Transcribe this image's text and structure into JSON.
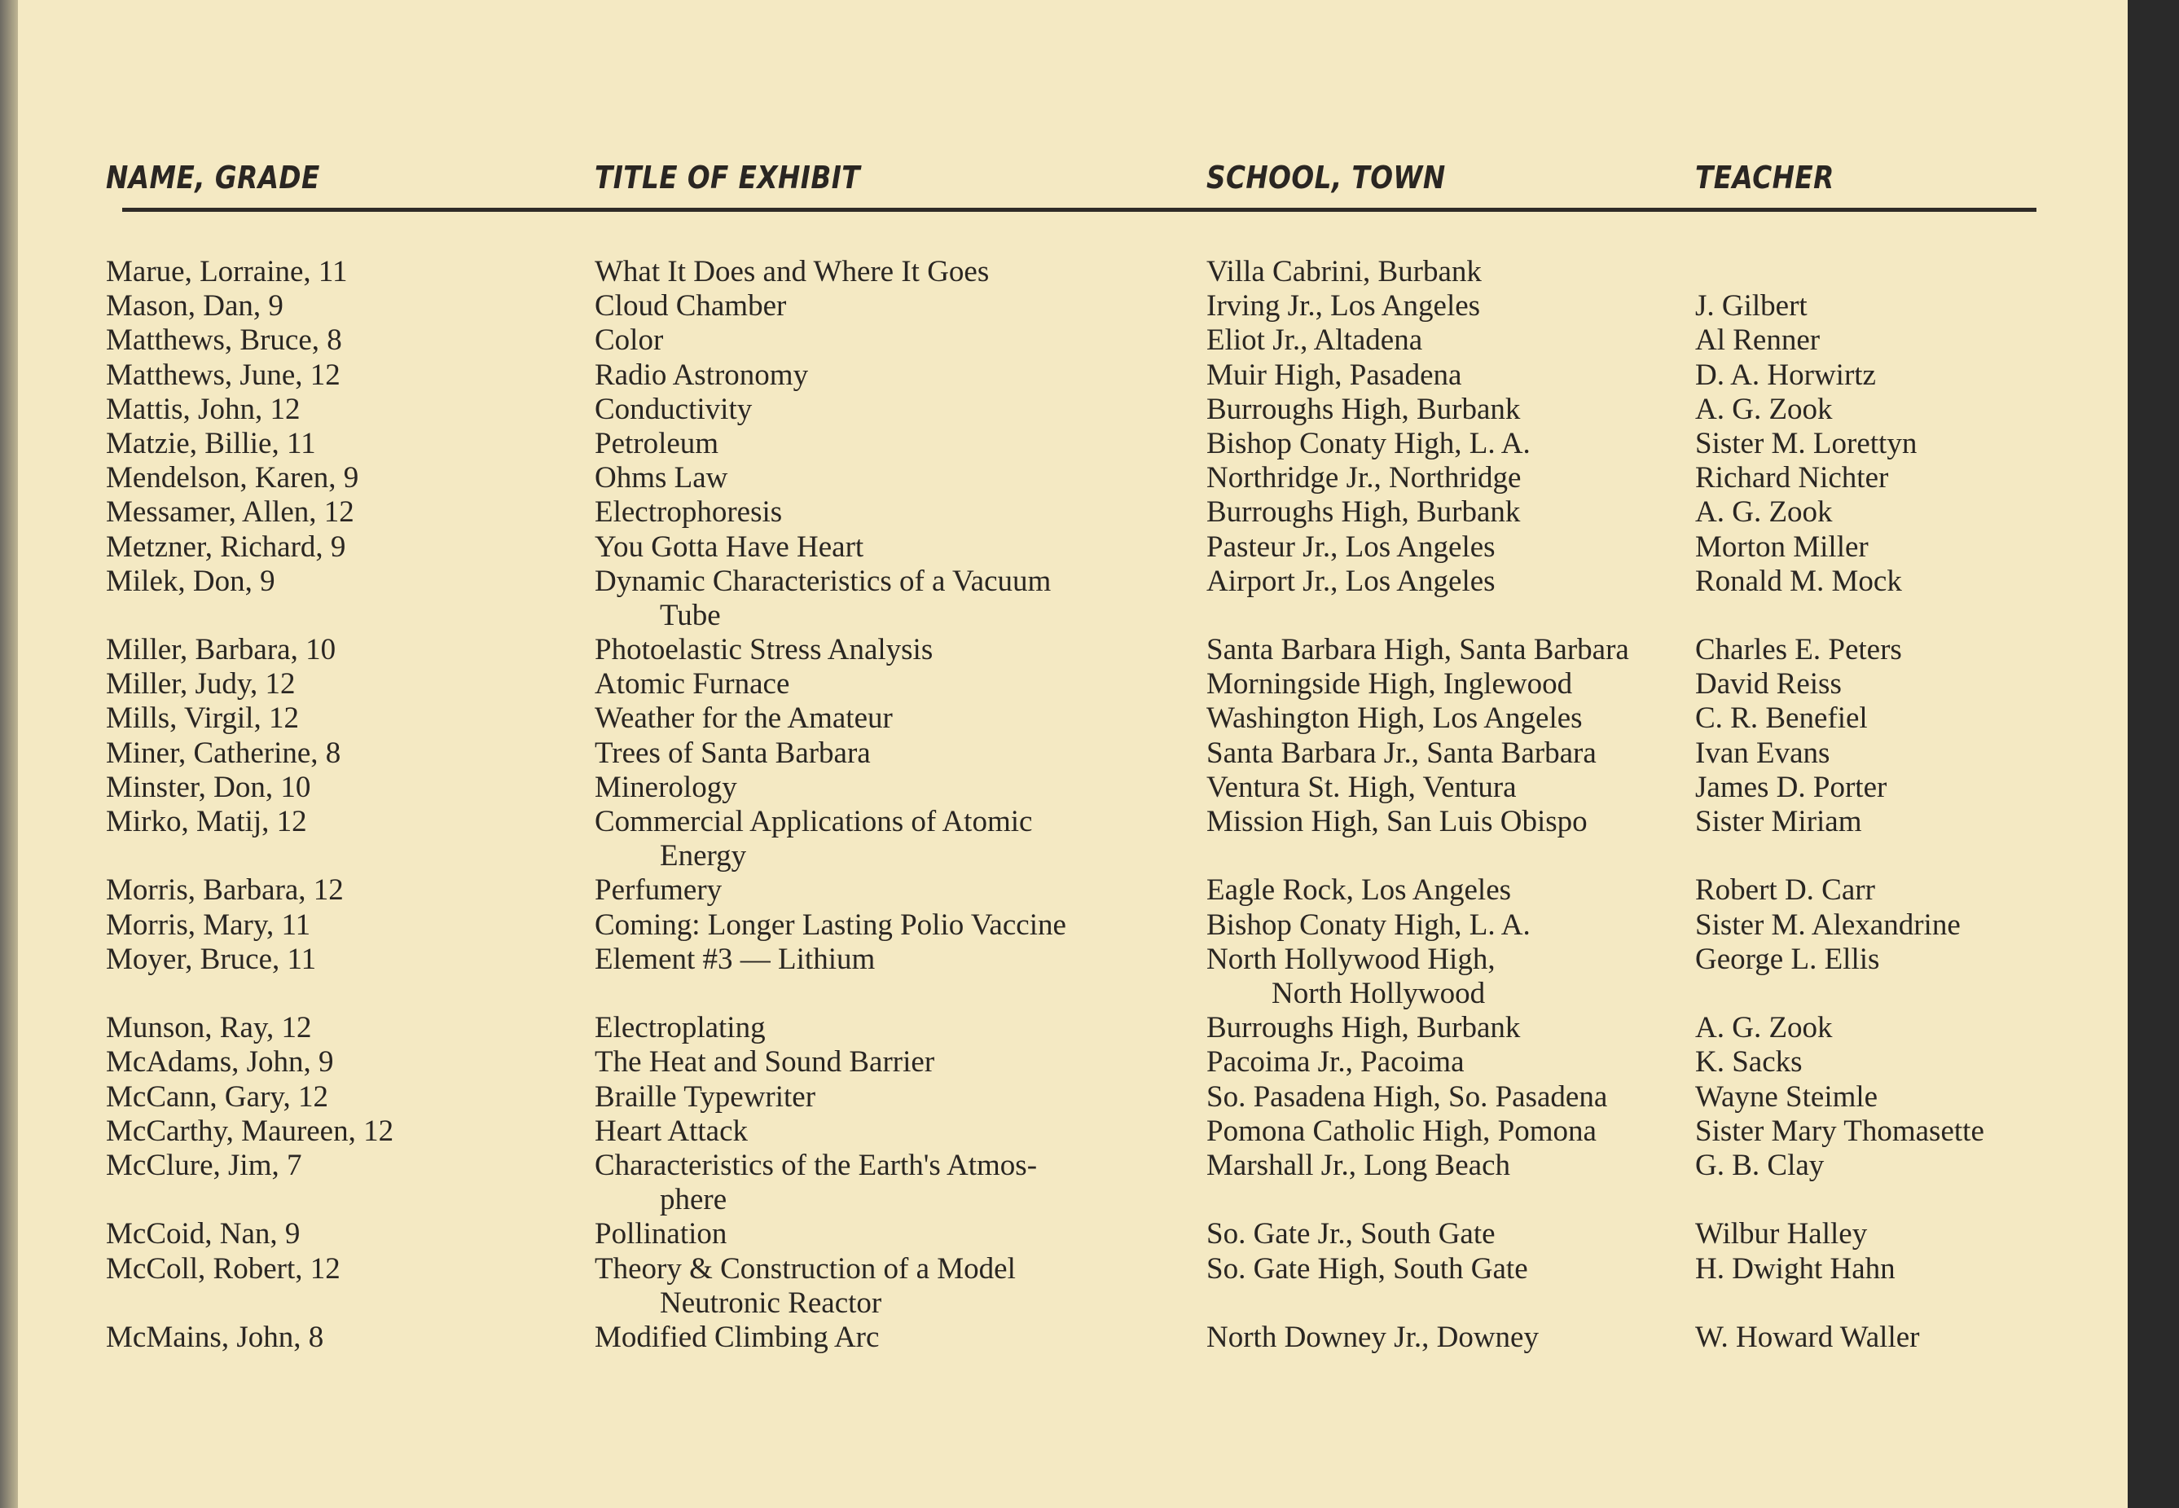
{
  "headers": {
    "name": "NAME, GRADE",
    "title": "TITLE OF EXHIBIT",
    "school": "SCHOOL, TOWN",
    "teacher": "TEACHER"
  },
  "rows": [
    {
      "name": "Marue, Lorraine, 11",
      "title": "What It Does and Where It Goes",
      "school": "Villa Cabrini, Burbank",
      "teacher": ""
    },
    {
      "name": "Mason, Dan, 9",
      "title": "Cloud Chamber",
      "school": "Irving Jr., Los Angeles",
      "teacher": "J. Gilbert"
    },
    {
      "name": "Matthews, Bruce, 8",
      "title": "Color",
      "school": "Eliot Jr., Altadena",
      "teacher": "Al Renner"
    },
    {
      "name": "Matthews, June, 12",
      "title": "Radio Astronomy",
      "school": "Muir High, Pasadena",
      "teacher": "D. A. Horwirtz"
    },
    {
      "name": "Mattis, John, 12",
      "title": "Conductivity",
      "school": "Burroughs High, Burbank",
      "teacher": "A. G. Zook"
    },
    {
      "name": "Matzie, Billie, 11",
      "title": "Petroleum",
      "school": "Bishop Conaty High, L. A.",
      "teacher": "Sister M. Lorettyn"
    },
    {
      "name": "Mendelson, Karen, 9",
      "title": "Ohms Law",
      "school": "Northridge Jr., Northridge",
      "teacher": "Richard Nichter"
    },
    {
      "name": "Messamer, Allen, 12",
      "title": "Electrophoresis",
      "school": "Burroughs High, Burbank",
      "teacher": "A. G. Zook"
    },
    {
      "name": "Metzner, Richard, 9",
      "title": "You Gotta Have Heart",
      "school": "Pasteur Jr., Los Angeles",
      "teacher": "Morton Miller"
    },
    {
      "name": "Milek, Don, 9",
      "title": "Dynamic Characteristics of a Vacuum",
      "title_cont": "Tube",
      "school": "Airport Jr., Los Angeles",
      "teacher": "Ronald M. Mock"
    },
    {
      "name": "Miller, Barbara, 10",
      "title": "Photoelastic Stress Analysis",
      "school": "Santa Barbara High, Santa Barbara",
      "teacher": "Charles E. Peters"
    },
    {
      "name": "Miller, Judy, 12",
      "title": "Atomic Furnace",
      "school": "Morningside High, Inglewood",
      "teacher": "David Reiss"
    },
    {
      "name": "Mills, Virgil, 12",
      "title": "Weather for the Amateur",
      "school": "Washington High, Los Angeles",
      "teacher": "C. R. Benefiel"
    },
    {
      "name": "Miner, Catherine, 8",
      "title": "Trees of Santa Barbara",
      "school": "Santa Barbara Jr., Santa Barbara",
      "teacher": "Ivan Evans"
    },
    {
      "name": "Minster, Don, 10",
      "title": "Minerology",
      "school": "Ventura St. High, Ventura",
      "teacher": "James D. Porter"
    },
    {
      "name": "Mirko, Matij, 12",
      "title": "Commercial Applications of Atomic",
      "title_cont": "Energy",
      "school": "Mission High, San Luis Obispo",
      "teacher": "Sister Miriam"
    },
    {
      "name": "Morris, Barbara, 12",
      "title": "Perfumery",
      "school": "Eagle Rock, Los Angeles",
      "teacher": "Robert D. Carr"
    },
    {
      "name": "Morris, Mary, 11",
      "title": "Coming: Longer Lasting Polio Vaccine",
      "school": "Bishop Conaty High, L. A.",
      "teacher": "Sister M. Alexandrine"
    },
    {
      "name": "Moyer, Bruce, 11",
      "title": "Element #3 — Lithium",
      "school": "North Hollywood High,",
      "school_cont": "North Hollywood",
      "teacher": "George L. Ellis"
    },
    {
      "name": "Munson, Ray, 12",
      "title": "Electroplating",
      "school": "Burroughs High, Burbank",
      "teacher": "A. G. Zook"
    },
    {
      "name": "McAdams, John, 9",
      "title": "The Heat and Sound Barrier",
      "school": "Pacoima Jr., Pacoima",
      "teacher": "K. Sacks"
    },
    {
      "name": "McCann, Gary, 12",
      "title": "Braille Typewriter",
      "school": "So. Pasadena High, So. Pasadena",
      "teacher": "Wayne Steimle"
    },
    {
      "name": "McCarthy, Maureen, 12",
      "title": "Heart Attack",
      "school": "Pomona Catholic High, Pomona",
      "teacher": "Sister Mary Thomasette"
    },
    {
      "name": "McClure, Jim, 7",
      "title": "Characteristics of the Earth's Atmos-",
      "title_cont": "phere",
      "school": "Marshall Jr., Long Beach",
      "teacher": "G. B. Clay"
    },
    {
      "name": "McCoid, Nan, 9",
      "title": "Pollination",
      "school": "So. Gate Jr., South Gate",
      "teacher": "Wilbur Halley"
    },
    {
      "name": "McColl, Robert, 12",
      "title": "Theory & Construction of a Model",
      "title_cont": "Neutronic Reactor",
      "school": "So. Gate High, South Gate",
      "teacher": "H. Dwight Hahn"
    },
    {
      "name": "McMains, John, 8",
      "title": "Modified Climbing Arc",
      "school": "North Downey Jr., Downey",
      "teacher": "W. Howard Waller"
    }
  ]
}
